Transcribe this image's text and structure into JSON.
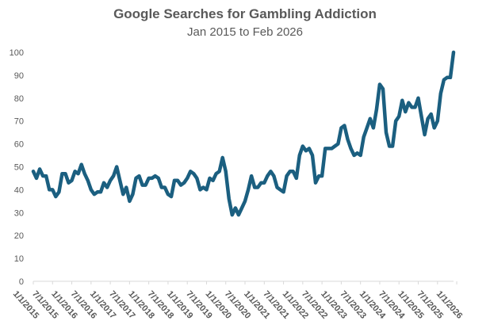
{
  "chart_data": {
    "type": "line",
    "title": "Google Searches for Gambling Addiction",
    "subtitle": "Jan 2015 to Feb 2026",
    "xlabel": "",
    "ylabel": "",
    "ylim": [
      0,
      100
    ],
    "yticks": [
      0,
      10,
      20,
      30,
      40,
      50,
      60,
      70,
      80,
      90,
      100
    ],
    "grid": false,
    "legend": "none",
    "xticks": [
      "1/1/2015",
      "7/1/2015",
      "1/1/2016",
      "7/1/2016",
      "1/1/2017",
      "7/1/2017",
      "1/1/2018",
      "7/1/2018",
      "1/1/2019",
      "7/1/2019",
      "1/1/2020",
      "7/1/2020",
      "1/1/2021",
      "7/1/2021",
      "1/1/2022",
      "7/1/2022",
      "1/1/2023",
      "7/1/2023",
      "1/1/2024",
      "7/1/2024",
      "1/1/2025",
      "7/1/2025",
      "1/1/2026"
    ],
    "series": [
      {
        "color": "#1b5f80",
        "start": "2015-01",
        "values": [
          48,
          45,
          49,
          46,
          46,
          40,
          40,
          37,
          39,
          47,
          47,
          43,
          44,
          48,
          47,
          51,
          47,
          44,
          40,
          38,
          39,
          39,
          43,
          41,
          44,
          46,
          50,
          44,
          38,
          41,
          35,
          38,
          45,
          46,
          42,
          42,
          45,
          45,
          46,
          45,
          41,
          41,
          38,
          37,
          44,
          44,
          42,
          43,
          45,
          48,
          47,
          45,
          40,
          41,
          40,
          45,
          44,
          47,
          48,
          54,
          48,
          36,
          29,
          32,
          29,
          32,
          35,
          40,
          46,
          41,
          41,
          43,
          43,
          46,
          48,
          46,
          41,
          40,
          39,
          46,
          48,
          48,
          45,
          55,
          59,
          57,
          58,
          55,
          43,
          46,
          46,
          58,
          58,
          58,
          59,
          60,
          67,
          68,
          62,
          58,
          55,
          56,
          55,
          63,
          67,
          71,
          67,
          75,
          86,
          84,
          65,
          59,
          59,
          70,
          72,
          79,
          74,
          78,
          76,
          76,
          80,
          72,
          64,
          71,
          73,
          67,
          70,
          82,
          88,
          89,
          89,
          100
        ]
      }
    ]
  }
}
